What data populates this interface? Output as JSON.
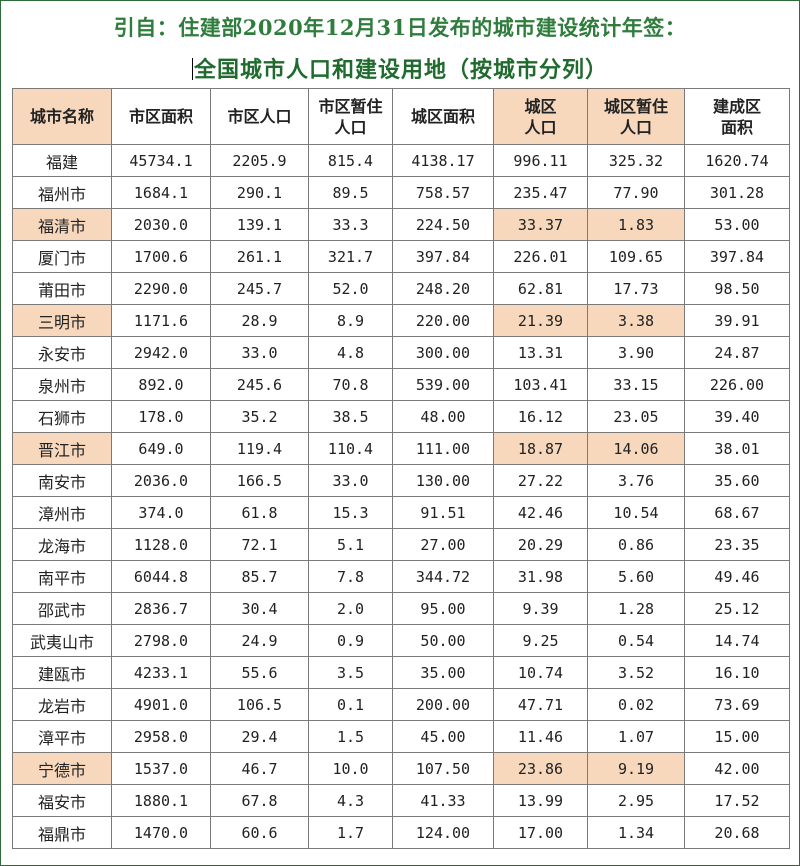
{
  "title_line1": "引自：住建部2020年12月31日发布的城市建设统计年签：",
  "title_line2": "全国城市人口和建设用地（按城市分列）",
  "columns": [
    "城市名称",
    "市区面积",
    "市区人口",
    "市区暂住人口",
    "城区面积",
    "城区人口",
    "城区暂住人口",
    "建成区面积"
  ],
  "rows": [
    {
      "name": "福建",
      "v": [
        "45734.1",
        "2205.9",
        "815.4",
        "4138.17",
        "996.11",
        "325.32",
        "1620.74"
      ],
      "highlight": false
    },
    {
      "name": "福州市",
      "v": [
        "1684.1",
        "290.1",
        "89.5",
        "758.57",
        "235.47",
        "77.90",
        "301.28"
      ],
      "highlight": false
    },
    {
      "name": "福清市",
      "v": [
        "2030.0",
        "139.1",
        "33.3",
        "224.50",
        "33.37",
        "1.83",
        "53.00"
      ],
      "highlight": true
    },
    {
      "name": "厦门市",
      "v": [
        "1700.6",
        "261.1",
        "321.7",
        "397.84",
        "226.01",
        "109.65",
        "397.84"
      ],
      "highlight": false
    },
    {
      "name": "莆田市",
      "v": [
        "2290.0",
        "245.7",
        "52.0",
        "248.20",
        "62.81",
        "17.73",
        "98.50"
      ],
      "highlight": false
    },
    {
      "name": "三明市",
      "v": [
        "1171.6",
        "28.9",
        "8.9",
        "220.00",
        "21.39",
        "3.38",
        "39.91"
      ],
      "highlight": true
    },
    {
      "name": "永安市",
      "v": [
        "2942.0",
        "33.0",
        "4.8",
        "300.00",
        "13.31",
        "3.90",
        "24.87"
      ],
      "highlight": false
    },
    {
      "name": "泉州市",
      "v": [
        "892.0",
        "245.6",
        "70.8",
        "539.00",
        "103.41",
        "33.15",
        "226.00"
      ],
      "highlight": false
    },
    {
      "name": "石狮市",
      "v": [
        "178.0",
        "35.2",
        "38.5",
        "48.00",
        "16.12",
        "23.05",
        "39.40"
      ],
      "highlight": false
    },
    {
      "name": "晋江市",
      "v": [
        "649.0",
        "119.4",
        "110.4",
        "111.00",
        "18.87",
        "14.06",
        "38.01"
      ],
      "highlight": true
    },
    {
      "name": "南安市",
      "v": [
        "2036.0",
        "166.5",
        "33.0",
        "130.00",
        "27.22",
        "3.76",
        "35.60"
      ],
      "highlight": false
    },
    {
      "name": "漳州市",
      "v": [
        "374.0",
        "61.8",
        "15.3",
        "91.51",
        "42.46",
        "10.54",
        "68.67"
      ],
      "highlight": false
    },
    {
      "name": "龙海市",
      "v": [
        "1128.0",
        "72.1",
        "5.1",
        "27.00",
        "20.29",
        "0.86",
        "23.35"
      ],
      "highlight": false
    },
    {
      "name": "南平市",
      "v": [
        "6044.8",
        "85.7",
        "7.8",
        "344.72",
        "31.98",
        "5.60",
        "49.46"
      ],
      "highlight": false
    },
    {
      "name": "邵武市",
      "v": [
        "2836.7",
        "30.4",
        "2.0",
        "95.00",
        "9.39",
        "1.28",
        "25.12"
      ],
      "highlight": false
    },
    {
      "name": "武夷山市",
      "v": [
        "2798.0",
        "24.9",
        "0.9",
        "50.00",
        "9.25",
        "0.54",
        "14.74"
      ],
      "highlight": false
    },
    {
      "name": "建瓯市",
      "v": [
        "4233.1",
        "55.6",
        "3.5",
        "35.00",
        "10.74",
        "3.52",
        "16.10"
      ],
      "highlight": false
    },
    {
      "name": "龙岩市",
      "v": [
        "4901.0",
        "106.5",
        "0.1",
        "200.00",
        "47.71",
        "0.02",
        "73.69"
      ],
      "highlight": false
    },
    {
      "name": "漳平市",
      "v": [
        "2958.0",
        "29.4",
        "1.5",
        "45.00",
        "11.46",
        "1.07",
        "15.00"
      ],
      "highlight": false
    },
    {
      "name": "宁德市",
      "v": [
        "1537.0",
        "46.7",
        "10.0",
        "107.50",
        "23.86",
        "9.19",
        "42.00"
      ],
      "highlight": true
    },
    {
      "name": "福安市",
      "v": [
        "1880.1",
        "67.8",
        "4.3",
        "41.33",
        "13.99",
        "2.95",
        "17.52"
      ],
      "highlight": false
    },
    {
      "name": "福鼎市",
      "v": [
        "1470.0",
        "60.6",
        "1.7",
        "124.00",
        "17.00",
        "1.34",
        "20.68"
      ],
      "highlight": false
    }
  ]
}
